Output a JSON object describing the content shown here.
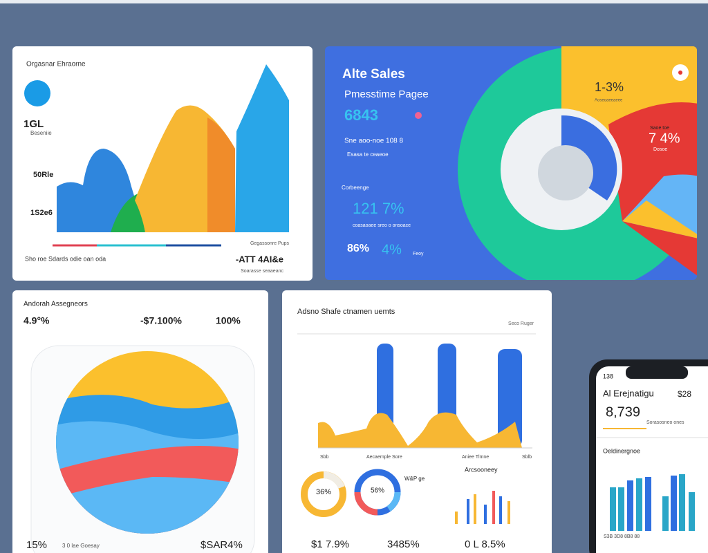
{
  "card1": {
    "title": "Orgasnar Ehraorne",
    "stat1": "1GL",
    "stat1_sub": "Beseniie",
    "stat2": "50Rle",
    "stat3": "1S2e6",
    "legend": "Gegassonre Pups",
    "footer_left": "Sho roe Sdards odie oan oda",
    "footer_right": "-ATT 4AI&e",
    "footer_sub": "Soarasse seaaeanc"
  },
  "card2": {
    "title": "Alte Sales",
    "subtitle": "Pmesstime Pagee",
    "big_value": "6843",
    "line1": "Sne aoo-noe 108 8",
    "line2": "Esasa te ceaeoe",
    "label": "Corbeenge",
    "value2": "121 7%",
    "line3": "coasaoaee sreo o onsoace",
    "value3": "86%",
    "value4": "4%",
    "value4_sub": "Feoy",
    "corner_value": "1-3%",
    "corner_sub": "Aoseoaeeaeee",
    "red_label": "Saoe toe",
    "red_value": "7 4%",
    "red_sub": "Dosoe"
  },
  "card3": {
    "title": "Andorah Assegneors",
    "stat1": "4.9°%",
    "stat2": "-$7.100%",
    "stat3": "100%",
    "footer_left": "15%",
    "footer_mid": "3 0 lae Goesay",
    "footer_right": "$SAR4%"
  },
  "card4": {
    "title": "Adsno Shafe ctnamen uemts",
    "corner": "Seco Ruger",
    "x1": "Sbb",
    "x2": "Aecaemple Sore",
    "x3": "Aniee Tlmne",
    "x4": "Sblb",
    "donut1": "36%",
    "donut2": "56%",
    "donut_note": "W&P ge",
    "mini_title": "Arcsooneey",
    "footer1": "$1 7.9%",
    "footer2": "3485%",
    "footer3": "0 L 8.5%"
  },
  "phone": {
    "time": "138",
    "title": "Al Erejnatigu",
    "side": "$28",
    "value": "8,739",
    "note": "Sorasosneo ones",
    "section": "Oeldinergnoe",
    "axis": "S3B 3D8 8B8 88"
  }
}
